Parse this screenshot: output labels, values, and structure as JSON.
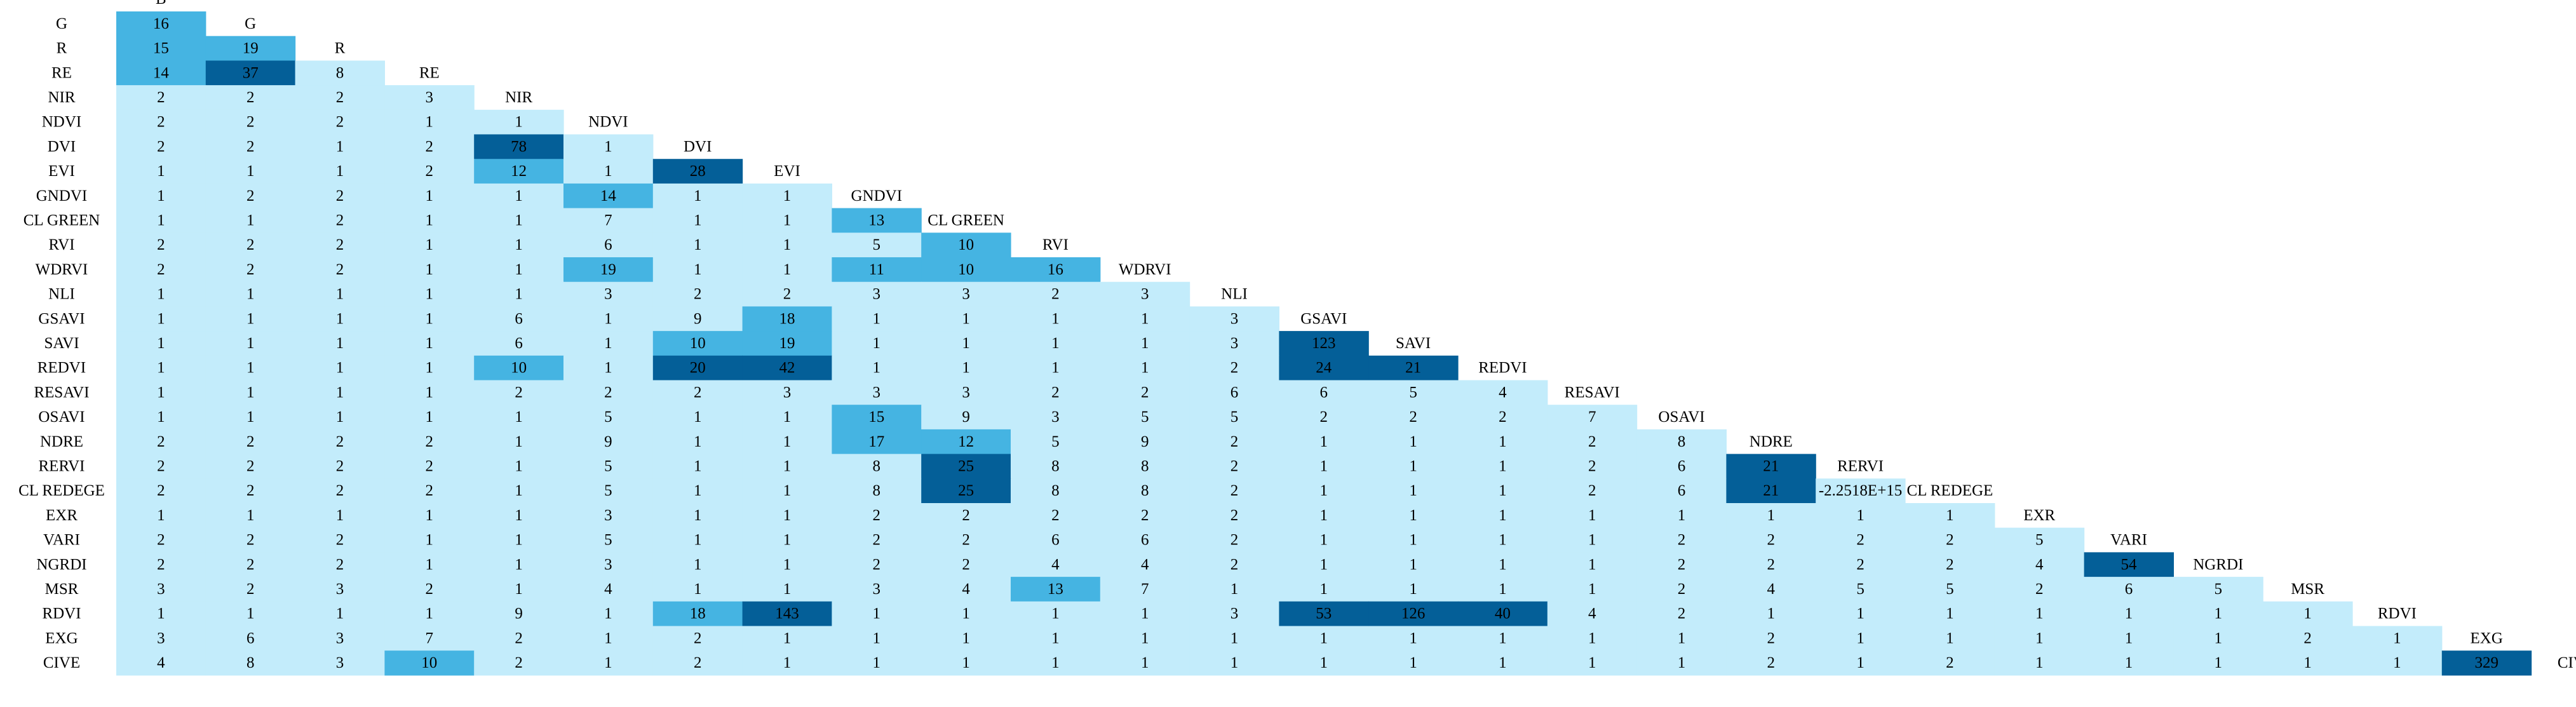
{
  "chart_data": {
    "type": "heatmap",
    "title": "",
    "layout": "lower-triangular",
    "labels": [
      "B",
      "G",
      "R",
      "RE",
      "NIR",
      "NDVI",
      "DVI",
      "EVI",
      "GNDVI",
      "CL GREEN",
      "RVI",
      "WDRVI",
      "NLI",
      "GSAVI",
      "SAVI",
      "REDVI",
      "RESAVI",
      "OSAVI",
      "NDRE",
      "RERVI",
      "CL REDEGE",
      "EXR",
      "VARI",
      "NGRDI",
      "MSR",
      "RDVI",
      "EXG",
      "CIVE"
    ],
    "row_labels": [
      "G",
      "R",
      "RE",
      "NIR",
      "NDVI",
      "DVI",
      "EVI",
      "GNDVI",
      "CL GREEN",
      "RVI",
      "WDRVI",
      "NLI",
      "GSAVI",
      "SAVI",
      "REDVI",
      "RESAVI",
      "OSAVI",
      "NDRE",
      "RERVI",
      "CL REDEGE",
      "EXR",
      "VARI",
      "NGRDI",
      "MSR",
      "RDVI",
      "EXG",
      "CIVE"
    ],
    "values": [
      [
        "16"
      ],
      [
        "15",
        "19"
      ],
      [
        "14",
        "37",
        "8"
      ],
      [
        "2",
        "2",
        "2",
        "3"
      ],
      [
        "2",
        "2",
        "2",
        "1",
        "1"
      ],
      [
        "2",
        "2",
        "1",
        "2",
        "78",
        "1"
      ],
      [
        "1",
        "1",
        "1",
        "2",
        "12",
        "1",
        "28"
      ],
      [
        "1",
        "2",
        "2",
        "1",
        "1",
        "14",
        "1",
        "1"
      ],
      [
        "1",
        "1",
        "2",
        "1",
        "1",
        "7",
        "1",
        "1",
        "13"
      ],
      [
        "2",
        "2",
        "2",
        "1",
        "1",
        "6",
        "1",
        "1",
        "5",
        "10"
      ],
      [
        "2",
        "2",
        "2",
        "1",
        "1",
        "19",
        "1",
        "1",
        "11",
        "10",
        "16"
      ],
      [
        "1",
        "1",
        "1",
        "1",
        "1",
        "3",
        "2",
        "2",
        "3",
        "3",
        "2",
        "3"
      ],
      [
        "1",
        "1",
        "1",
        "1",
        "6",
        "1",
        "9",
        "18",
        "1",
        "1",
        "1",
        "1",
        "3"
      ],
      [
        "1",
        "1",
        "1",
        "1",
        "6",
        "1",
        "10",
        "19",
        "1",
        "1",
        "1",
        "1",
        "3",
        "123"
      ],
      [
        "1",
        "1",
        "1",
        "1",
        "10",
        "1",
        "20",
        "42",
        "1",
        "1",
        "1",
        "1",
        "2",
        "24",
        "21"
      ],
      [
        "1",
        "1",
        "1",
        "1",
        "2",
        "2",
        "2",
        "3",
        "3",
        "3",
        "2",
        "2",
        "6",
        "6",
        "5",
        "4"
      ],
      [
        "1",
        "1",
        "1",
        "1",
        "1",
        "5",
        "1",
        "1",
        "15",
        "9",
        "3",
        "5",
        "5",
        "2",
        "2",
        "2",
        "7"
      ],
      [
        "2",
        "2",
        "2",
        "2",
        "1",
        "9",
        "1",
        "1",
        "17",
        "12",
        "5",
        "9",
        "2",
        "1",
        "1",
        "1",
        "2",
        "8"
      ],
      [
        "2",
        "2",
        "2",
        "2",
        "1",
        "5",
        "1",
        "1",
        "8",
        "25",
        "8",
        "8",
        "2",
        "1",
        "1",
        "1",
        "2",
        "6",
        "21"
      ],
      [
        "2",
        "2",
        "2",
        "2",
        "1",
        "5",
        "1",
        "1",
        "8",
        "25",
        "8",
        "8",
        "2",
        "1",
        "1",
        "1",
        "2",
        "6",
        "21",
        "-2.2518E+15"
      ],
      [
        "1",
        "1",
        "1",
        "1",
        "1",
        "3",
        "1",
        "1",
        "2",
        "2",
        "2",
        "2",
        "2",
        "1",
        "1",
        "1",
        "1",
        "1",
        "1",
        "1",
        "1"
      ],
      [
        "2",
        "2",
        "2",
        "1",
        "1",
        "5",
        "1",
        "1",
        "2",
        "2",
        "6",
        "6",
        "2",
        "1",
        "1",
        "1",
        "1",
        "2",
        "2",
        "2",
        "2",
        "5"
      ],
      [
        "2",
        "2",
        "2",
        "1",
        "1",
        "3",
        "1",
        "1",
        "2",
        "2",
        "4",
        "4",
        "2",
        "1",
        "1",
        "1",
        "1",
        "2",
        "2",
        "2",
        "2",
        "4",
        "54"
      ],
      [
        "3",
        "2",
        "3",
        "2",
        "1",
        "4",
        "1",
        "1",
        "3",
        "4",
        "13",
        "7",
        "1",
        "1",
        "1",
        "1",
        "1",
        "2",
        "4",
        "5",
        "5",
        "2",
        "6",
        "5"
      ],
      [
        "1",
        "1",
        "1",
        "1",
        "9",
        "1",
        "18",
        "143",
        "1",
        "1",
        "1",
        "1",
        "3",
        "53",
        "126",
        "40",
        "4",
        "2",
        "1",
        "1",
        "1",
        "1",
        "1",
        "1",
        "1"
      ],
      [
        "3",
        "6",
        "3",
        "7",
        "2",
        "1",
        "2",
        "1",
        "1",
        "1",
        "1",
        "1",
        "1",
        "1",
        "1",
        "1",
        "1",
        "1",
        "2",
        "1",
        "1",
        "1",
        "1",
        "1",
        "2",
        "1"
      ],
      [
        "4",
        "8",
        "3",
        "10",
        "2",
        "1",
        "2",
        "1",
        "1",
        "1",
        "1",
        "1",
        "1",
        "1",
        "1",
        "1",
        "1",
        "1",
        "2",
        "1",
        "2",
        "1",
        "1",
        "1",
        "1",
        "1",
        "329"
      ]
    ],
    "color_scale": {
      "low": "#c3ecfb",
      "mid": "#45b4e2",
      "high": "#045f98",
      "mid_threshold": 10,
      "high_threshold": 20
    },
    "xlabel": "",
    "ylabel": "",
    "legend": "none"
  }
}
